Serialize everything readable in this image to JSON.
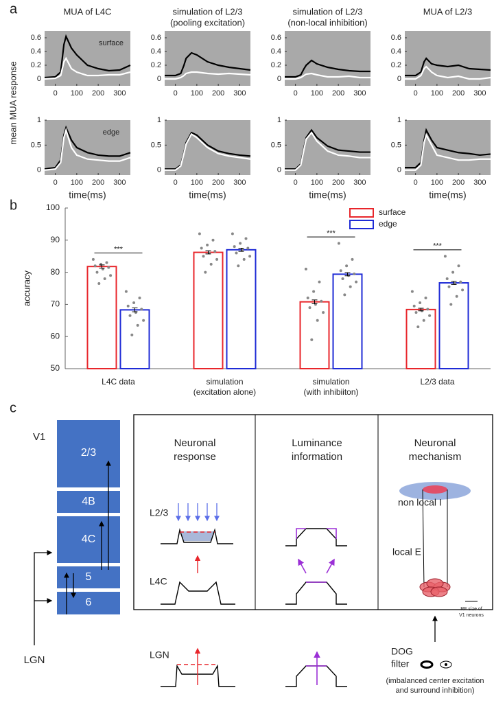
{
  "figure": {
    "panel_labels": [
      "a",
      "b",
      "c"
    ],
    "panel_a_y_label": "mean MUA response"
  },
  "chart_data": [
    {
      "type": "line",
      "title": [
        "MUA of L4C"
      ],
      "annotation": "surface",
      "x": [
        -50,
        0,
        25,
        40,
        50,
        75,
        100,
        150,
        200,
        250,
        300,
        350
      ],
      "xlim": [
        -50,
        350
      ],
      "xticks": [
        0,
        100,
        200,
        300
      ],
      "ylim": [
        -0.1,
        0.7
      ],
      "yticks": [
        0,
        0.2,
        0.4,
        0.6
      ],
      "background": "#a9a9a9",
      "series": [
        {
          "color": "#000000",
          "values": [
            0.02,
            0.03,
            0.1,
            0.5,
            0.62,
            0.45,
            0.35,
            0.2,
            0.15,
            0.12,
            0.13,
            0.2
          ]
        },
        {
          "color": "#ffffff",
          "values": [
            0,
            0.01,
            0.05,
            0.25,
            0.3,
            0.15,
            0.1,
            0.05,
            0.05,
            0.06,
            0.06,
            0.1
          ]
        }
      ]
    },
    {
      "type": "line",
      "title": [
        "simulation of L2/3",
        "(pooling excitation)"
      ],
      "x": [
        -50,
        0,
        25,
        40,
        50,
        75,
        100,
        150,
        200,
        250,
        300,
        350
      ],
      "xlim": [
        -50,
        350
      ],
      "xticks": [
        0,
        100,
        200,
        300
      ],
      "ylim": [
        -0.1,
        0.7
      ],
      "yticks": [
        0,
        0.2,
        0.4,
        0.6
      ],
      "background": "#a9a9a9",
      "series": [
        {
          "color": "#000000",
          "values": [
            0.05,
            0.05,
            0.08,
            0.2,
            0.3,
            0.38,
            0.35,
            0.25,
            0.2,
            0.17,
            0.15,
            0.13
          ]
        },
        {
          "color": "#ffffff",
          "values": [
            0,
            0,
            0.02,
            0.05,
            0.08,
            0.1,
            0.1,
            0.08,
            0.07,
            0.08,
            0.07,
            0.06
          ]
        }
      ]
    },
    {
      "type": "line",
      "title": [
        "simulation of L2/3",
        "(non-local inhibition)"
      ],
      "x": [
        -50,
        0,
        25,
        40,
        50,
        75,
        100,
        150,
        200,
        250,
        300,
        350
      ],
      "xlim": [
        -50,
        350
      ],
      "xticks": [
        0,
        100,
        200,
        300
      ],
      "ylim": [
        -0.1,
        0.7
      ],
      "yticks": [
        0,
        0.2,
        0.4,
        0.6
      ],
      "background": "#a9a9a9",
      "series": [
        {
          "color": "#000000",
          "values": [
            0.03,
            0.03,
            0.06,
            0.15,
            0.2,
            0.27,
            0.22,
            0.17,
            0.14,
            0.12,
            0.11,
            0.11
          ]
        },
        {
          "color": "#ffffff",
          "values": [
            0,
            0,
            0.02,
            0.05,
            0.07,
            0.08,
            0.06,
            0.03,
            0.03,
            0.04,
            0.02,
            0.02
          ]
        }
      ]
    },
    {
      "type": "line",
      "title": [
        "MUA of L2/3"
      ],
      "x": [
        -50,
        0,
        25,
        40,
        50,
        75,
        100,
        150,
        200,
        250,
        300,
        350
      ],
      "xlim": [
        -50,
        350
      ],
      "xticks": [
        0,
        100,
        200,
        300
      ],
      "ylim": [
        -0.1,
        0.7
      ],
      "yticks": [
        0,
        0.2,
        0.4,
        0.6
      ],
      "background": "#a9a9a9",
      "series": [
        {
          "color": "#000000",
          "values": [
            0.05,
            0.05,
            0.1,
            0.25,
            0.3,
            0.22,
            0.2,
            0.18,
            0.2,
            0.15,
            0.14,
            0.13
          ]
        },
        {
          "color": "#ffffff",
          "values": [
            0,
            0,
            0.05,
            0.15,
            0.18,
            0.1,
            0.05,
            0.02,
            0.04,
            0,
            0,
            0.02
          ]
        }
      ]
    },
    {
      "type": "line",
      "annotation": "edge",
      "x_label": "time(ms)",
      "x": [
        -50,
        0,
        25,
        40,
        50,
        75,
        100,
        150,
        200,
        250,
        300,
        350
      ],
      "xlim": [
        -50,
        350
      ],
      "xticks": [
        0,
        100,
        200,
        300
      ],
      "ylim": [
        -0.1,
        1
      ],
      "yticks": [
        0,
        0.5,
        1
      ],
      "background": "#a9a9a9",
      "series": [
        {
          "color": "#000000",
          "values": [
            0.02,
            0.05,
            0.2,
            0.7,
            0.85,
            0.6,
            0.45,
            0.35,
            0.3,
            0.28,
            0.28,
            0.35
          ]
        },
        {
          "color": "#ffffff",
          "values": [
            0,
            0.02,
            0.15,
            0.65,
            0.8,
            0.45,
            0.3,
            0.22,
            0.2,
            0.18,
            0.18,
            0.25
          ]
        }
      ]
    },
    {
      "type": "line",
      "x_label": "time(ms)",
      "x": [
        -50,
        0,
        25,
        40,
        50,
        75,
        100,
        150,
        200,
        250,
        300,
        350
      ],
      "xlim": [
        -50,
        350
      ],
      "xticks": [
        0,
        100,
        200,
        300
      ],
      "ylim": [
        -0.1,
        1
      ],
      "yticks": [
        0,
        0.5,
        1
      ],
      "background": "#a9a9a9",
      "series": [
        {
          "color": "#000000",
          "values": [
            0.02,
            0.02,
            0.1,
            0.35,
            0.55,
            0.75,
            0.7,
            0.5,
            0.38,
            0.33,
            0.3,
            0.28
          ]
        },
        {
          "color": "#ffffff",
          "values": [
            0,
            0,
            0.08,
            0.33,
            0.52,
            0.72,
            0.65,
            0.45,
            0.33,
            0.28,
            0.25,
            0.22
          ]
        }
      ]
    },
    {
      "type": "line",
      "x_label": "time(ms)",
      "x": [
        -50,
        0,
        25,
        40,
        50,
        75,
        100,
        150,
        200,
        250,
        300,
        350
      ],
      "xlim": [
        -50,
        350
      ],
      "xticks": [
        0,
        100,
        200,
        300
      ],
      "ylim": [
        -0.1,
        1
      ],
      "yticks": [
        0,
        0.5,
        1
      ],
      "background": "#a9a9a9",
      "series": [
        {
          "color": "#000000",
          "values": [
            0.02,
            0.02,
            0.12,
            0.45,
            0.65,
            0.8,
            0.65,
            0.48,
            0.4,
            0.38,
            0.36,
            0.36
          ]
        },
        {
          "color": "#ffffff",
          "values": [
            0,
            0,
            0.1,
            0.42,
            0.62,
            0.75,
            0.58,
            0.38,
            0.3,
            0.28,
            0.25,
            0.25
          ]
        }
      ]
    },
    {
      "type": "line",
      "x_label": "time(ms)",
      "x": [
        -50,
        0,
        25,
        40,
        50,
        75,
        100,
        150,
        200,
        250,
        300,
        350
      ],
      "xlim": [
        -50,
        350
      ],
      "xticks": [
        0,
        100,
        200,
        300
      ],
      "ylim": [
        -0.1,
        1
      ],
      "yticks": [
        0,
        0.5,
        1
      ],
      "background": "#a9a9a9",
      "series": [
        {
          "color": "#000000",
          "values": [
            0.05,
            0.05,
            0.15,
            0.6,
            0.8,
            0.6,
            0.45,
            0.4,
            0.35,
            0.33,
            0.3,
            0.32
          ]
        },
        {
          "color": "#ffffff",
          "values": [
            0,
            0,
            0.1,
            0.55,
            0.7,
            0.5,
            0.3,
            0.25,
            0.2,
            0.2,
            0.22,
            0.22
          ]
        }
      ]
    },
    {
      "type": "bar",
      "y_label": "accuracy",
      "ylim": [
        50,
        100
      ],
      "yticks": [
        50,
        60,
        70,
        80,
        90,
        100
      ],
      "categories": [
        [
          "L4C data"
        ],
        [
          "simulation",
          "(excitation alone)"
        ],
        [
          "simulation",
          "(with inhibiiton)"
        ],
        [
          "L2/3 data"
        ]
      ],
      "significance": [
        "***",
        null,
        "***",
        "***"
      ],
      "series": [
        {
          "name": "surface",
          "color": "#e8262b",
          "values": [
            81.8,
            86.2,
            70.8,
            68.4
          ],
          "errors": [
            0.5,
            0.5,
            0.6,
            0.4
          ],
          "points": [
            [
              84,
              83,
              82.5,
              82,
              81.5,
              81,
              80,
              79,
              78,
              76.5
            ],
            [
              92,
              90,
              88.5,
              87.5,
              86.5,
              86,
              85,
              84,
              82.5,
              80
            ],
            [
              81,
              77,
              74,
              72,
              71,
              70,
              69,
              67.5,
              65,
              59
            ],
            [
              74,
              72,
              70.5,
              69.5,
              68.5,
              68,
              67.5,
              66.5,
              65,
              63
            ]
          ]
        },
        {
          "name": "edge",
          "color": "#1f2bd6",
          "values": [
            68.3,
            87,
            79.4,
            76.7
          ],
          "errors": [
            0.6,
            0.5,
            0.5,
            0.5
          ],
          "points": [
            [
              74,
              72,
              70.5,
              69.5,
              68.5,
              67.5,
              66.5,
              65,
              63.5,
              60.5
            ],
            [
              92,
              90.5,
              89,
              88,
              87.5,
              87,
              86,
              85,
              84,
              82
            ],
            [
              89,
              84,
              82,
              80.5,
              79.5,
              79,
              78,
              77,
              75.5,
              73
            ],
            [
              85,
              82,
              80,
              78,
              77,
              76.5,
              75.5,
              74.5,
              72.5,
              70
            ]
          ]
        }
      ]
    }
  ],
  "diagram": {
    "region": "V1",
    "layers": [
      "2/3",
      "4B",
      "4C",
      "5",
      "6"
    ],
    "input": "LGN",
    "columns": [
      [
        "Neuronal",
        "response"
      ],
      [
        "Luminance",
        "information"
      ],
      [
        "Neuronal",
        "mechanism"
      ]
    ],
    "rows": [
      "L2/3",
      "L4C",
      "LGN"
    ],
    "mechanism_labels": {
      "inhibition": "non local I",
      "excitation": "local E",
      "scale_bar": [
        "RF size of",
        "V1 neurons"
      ],
      "filter": [
        "DOG",
        "filter"
      ],
      "filter_note": [
        "(imbalanced center excitation",
        "and surround inhibition)"
      ]
    }
  }
}
